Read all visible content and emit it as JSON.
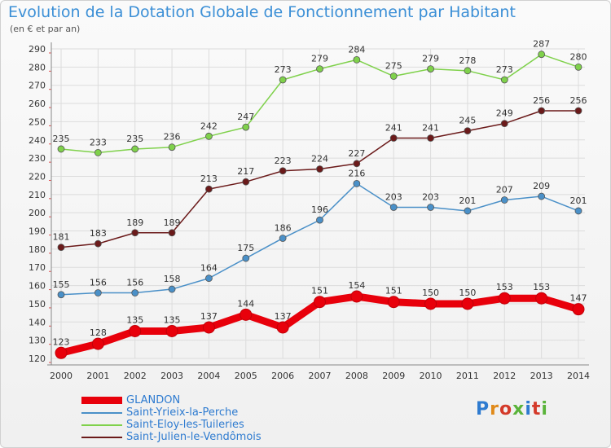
{
  "title": "Evolution de la Dotation Globale de Fonctionnement par Habitant",
  "subtitle": "(en € et par an)",
  "logo": {
    "text": "Proxiti",
    "colors": [
      "#2e7bd0",
      "#e08a1a",
      "#d43a2a",
      "#5ab33a",
      "#2e7bd0",
      "#d43a2a",
      "#5ab33a"
    ]
  },
  "chart_data": {
    "type": "line",
    "x": [
      "2000",
      "2001",
      "2002",
      "2003",
      "2004",
      "2005",
      "2006",
      "2007",
      "2008",
      "2009",
      "2010",
      "2011",
      "2012",
      "2013",
      "2014"
    ],
    "ylim": [
      120,
      290
    ],
    "yticks": [
      120,
      130,
      140,
      150,
      160,
      170,
      180,
      190,
      200,
      210,
      220,
      230,
      240,
      250,
      260,
      270,
      280,
      290
    ],
    "grid": true,
    "legend_position": "bottom-left",
    "series": [
      {
        "name": "GLANDON",
        "color": "#e8000b",
        "bold": true,
        "values": [
          123,
          128,
          135,
          135,
          137,
          144,
          137,
          151,
          154,
          151,
          150,
          150,
          153,
          153,
          147
        ]
      },
      {
        "name": "Saint-Yrieix-la-Perche",
        "color": "#4a90c8",
        "bold": false,
        "values": [
          155,
          156,
          156,
          158,
          164,
          175,
          186,
          196,
          216,
          203,
          203,
          201,
          207,
          209,
          201
        ]
      },
      {
        "name": "Saint-Eloy-les-Tuileries",
        "color": "#7fd14b",
        "bold": false,
        "values": [
          235,
          233,
          235,
          236,
          242,
          247,
          273,
          279,
          284,
          275,
          279,
          278,
          273,
          287,
          280
        ]
      },
      {
        "name": "Saint-Julien-le-Vendômois",
        "color": "#6b1a1a",
        "bold": false,
        "values": [
          181,
          183,
          189,
          189,
          213,
          217,
          223,
          224,
          227,
          241,
          241,
          245,
          249,
          256,
          256
        ]
      }
    ]
  }
}
